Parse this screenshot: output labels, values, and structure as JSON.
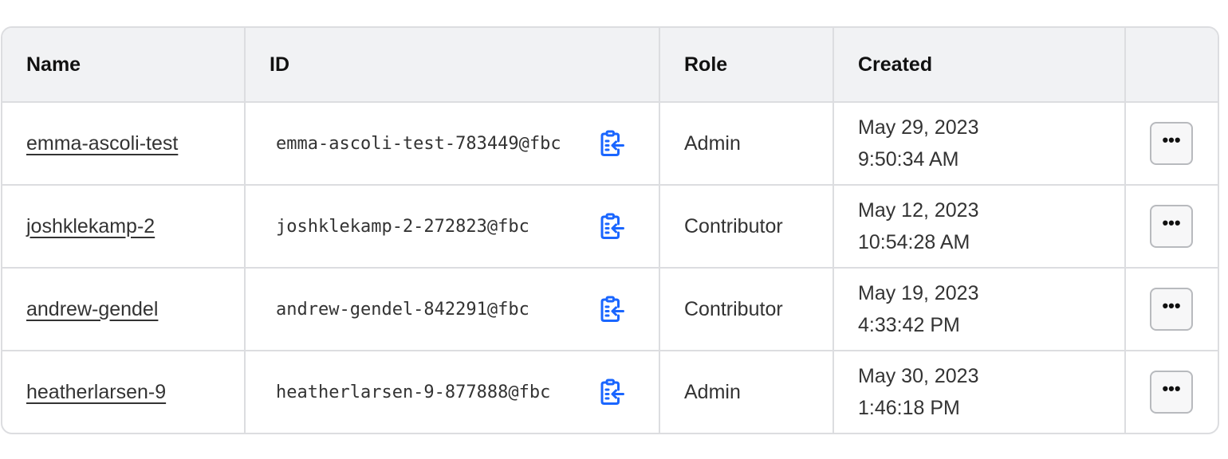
{
  "columns": [
    "Name",
    "ID",
    "Role",
    "Created",
    ""
  ],
  "rows": [
    {
      "name": "emma-ascoli-test",
      "id": "emma-ascoli-test-783449@fbc",
      "role": "Admin",
      "date": "May 29, 2023",
      "time": "9:50:34 AM"
    },
    {
      "name": "joshklekamp-2",
      "id": "joshklekamp-2-272823@fbc",
      "role": "Contributor",
      "date": "May 12, 2023",
      "time": "10:54:28 AM"
    },
    {
      "name": "andrew-gendel",
      "id": "andrew-gendel-842291@fbc",
      "role": "Contributor",
      "date": "May 19, 2023",
      "time": "4:33:42 PM"
    },
    {
      "name": "heatherlarsen-9",
      "id": "heatherlarsen-9-877888@fbc",
      "role": "Admin",
      "date": "May 30, 2023",
      "time": "1:46:18 PM"
    }
  ],
  "icons": {
    "copy": "clipboard-copy-icon",
    "more": "more-horizontal-icon"
  },
  "colors": {
    "accent": "#1a66ff",
    "border": "#dcdde0",
    "header_bg": "#f1f2f4"
  },
  "more_label": "•••"
}
